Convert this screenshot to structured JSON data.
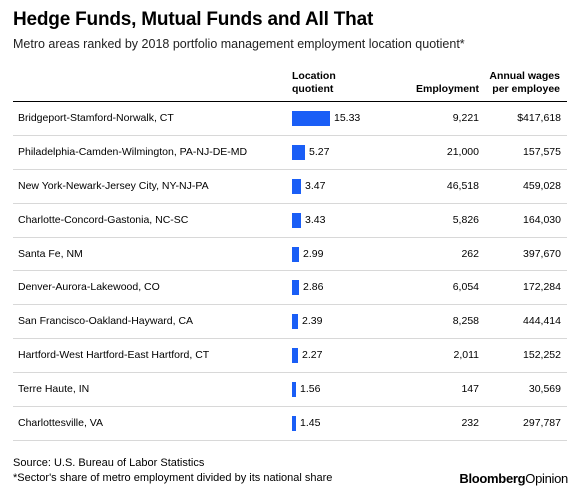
{
  "title": "Hedge Funds, Mutual Funds and All That",
  "subtitle": "Metro areas ranked by 2018 portfolio management employment location quotient*",
  "headers": {
    "lq_line1": "Location",
    "lq_line2": "quotient",
    "employment": "Employment",
    "wages_line1": "Annual wages",
    "wages_line2": "per employee"
  },
  "chart_data": {
    "type": "table",
    "title": "Hedge Funds, Mutual Funds and All That",
    "columns": [
      "",
      "Location quotient",
      "Employment",
      "Annual wages per employee"
    ],
    "rows": [
      {
        "metro": "Bridgeport-Stamford-Norwalk, CT",
        "lq": "15.33",
        "employment": "9,221",
        "wages": "$417,618"
      },
      {
        "metro": "Philadelphia-Camden-Wilmington, PA-NJ-DE-MD",
        "lq": "5.27",
        "employment": "21,000",
        "wages": "157,575"
      },
      {
        "metro": "New York-Newark-Jersey City, NY-NJ-PA",
        "lq": "3.47",
        "employment": "46,518",
        "wages": "459,028"
      },
      {
        "metro": "Charlotte-Concord-Gastonia, NC-SC",
        "lq": "3.43",
        "employment": "5,826",
        "wages": "164,030"
      },
      {
        "metro": "Santa Fe, NM",
        "lq": "2.99",
        "employment": "262",
        "wages": "397,670"
      },
      {
        "metro": "Denver-Aurora-Lakewood, CO",
        "lq": "2.86",
        "employment": "6,054",
        "wages": "172,284"
      },
      {
        "metro": "San Francisco-Oakland-Hayward, CA",
        "lq": "2.39",
        "employment": "8,258",
        "wages": "444,414"
      },
      {
        "metro": "Hartford-West Hartford-East Hartford, CT",
        "lq": "2.27",
        "employment": "2,011",
        "wages": "152,252"
      },
      {
        "metro": "Terre Haute, IN",
        "lq": "1.56",
        "employment": "147",
        "wages": "30,569"
      },
      {
        "metro": "Charlottesville, VA",
        "lq": "1.45",
        "employment": "232",
        "wages": "297,787"
      }
    ],
    "bar_color": "#1a5ef6"
  },
  "footer": {
    "source": "Source: U.S. Bureau of Labor Statistics",
    "note": "*Sector's share of metro employment divided by its national share"
  },
  "brand": {
    "name": "Bloomberg",
    "suffix": "Opinion"
  }
}
